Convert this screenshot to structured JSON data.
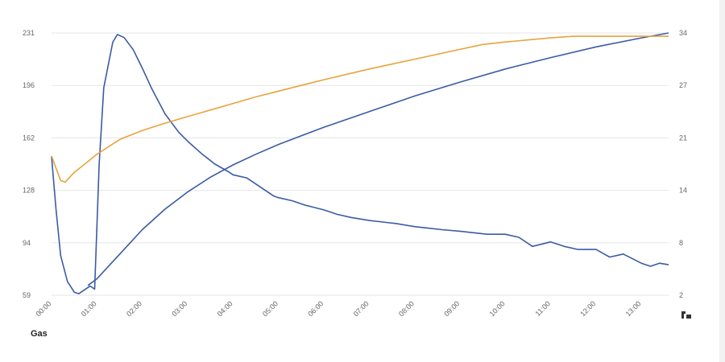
{
  "chart_data": {
    "type": "line",
    "title": "",
    "xlabel": "",
    "caption": "Gas",
    "x_ticks": [
      "00:00",
      "01:00",
      "02:00",
      "03:00",
      "04:00",
      "05:00",
      "06:00",
      "07:00",
      "08:00",
      "09:00",
      "10:00",
      "11:00",
      "12:00",
      "13:00"
    ],
    "xlim": [
      0,
      13.6
    ],
    "left_axis": {
      "ticks": [
        "59",
        "94",
        "128",
        "162",
        "196",
        "231"
      ],
      "ylim": [
        59,
        231
      ]
    },
    "right_axis": {
      "ticks": [
        "2",
        "8",
        "14",
        "21",
        "27",
        "34"
      ],
      "ylim": [
        2,
        34
      ]
    },
    "grid": "horizontal",
    "series": [
      {
        "axis": "left",
        "color": "#3a5ba5",
        "x": [
          0,
          0.1,
          0.2,
          0.35,
          0.5,
          0.6,
          0.7,
          0.85,
          0.95,
          1.05,
          1.15,
          1.35,
          1.45,
          1.6,
          1.8,
          2.0,
          2.2,
          2.5,
          2.8,
          3.0,
          3.3,
          3.6,
          3.9,
          4.0,
          4.3,
          4.6,
          4.9,
          5.0,
          5.3,
          5.6,
          6.0,
          6.3,
          6.6,
          7.0,
          7.3,
          7.6,
          8.0,
          8.3,
          8.6,
          9.0,
          9.3,
          9.6,
          10.0,
          10.3,
          10.6,
          11.0,
          11.3,
          11.6,
          12.0,
          12.3,
          12.6,
          13.0,
          13.2,
          13.4,
          13.6
        ],
        "values": [
          150,
          115,
          85,
          68,
          61,
          60,
          62,
          65,
          63,
          145,
          195,
          225,
          230,
          228,
          220,
          208,
          195,
          178,
          166,
          160,
          152,
          145,
          140,
          138,
          136,
          130,
          124,
          123,
          121,
          118,
          115,
          112,
          110,
          108,
          107,
          106,
          104,
          103,
          102,
          101,
          100,
          99,
          99,
          97,
          91,
          94,
          91,
          89,
          89,
          84,
          86,
          80,
          78,
          80,
          79
        ]
      },
      {
        "axis": "right",
        "color": "#3a5ba5",
        "x": [
          0.8,
          1.0,
          1.5,
          2.0,
          2.5,
          3.0,
          3.5,
          4.0,
          4.5,
          5.0,
          6.0,
          7.0,
          8.0,
          9.0,
          10.0,
          11.0,
          12.0,
          13.0,
          13.6
        ],
        "values": [
          3.2,
          4.0,
          7.0,
          10.0,
          12.5,
          14.6,
          16.4,
          17.9,
          19.2,
          20.4,
          22.5,
          24.4,
          26.3,
          28.0,
          29.6,
          31.0,
          32.3,
          33.4,
          34
        ]
      },
      {
        "axis": "right",
        "color": "#e8a33c",
        "x": [
          0,
          0.1,
          0.2,
          0.3,
          0.5,
          0.8,
          1.0,
          1.5,
          2.0,
          2.5,
          3.0,
          3.5,
          4.0,
          4.5,
          5.0,
          6.0,
          7.0,
          8.0,
          9.0,
          9.5,
          10.0,
          11.0,
          11.5,
          12.0,
          13.0,
          13.6
        ],
        "values": [
          19,
          17.5,
          16,
          15.8,
          17,
          18.3,
          19.2,
          21,
          22.1,
          23,
          23.8,
          24.6,
          25.4,
          26.2,
          26.9,
          28.3,
          29.6,
          30.8,
          32,
          32.6,
          32.9,
          33.4,
          33.6,
          33.6,
          33.6,
          33.6
        ]
      }
    ]
  },
  "ui": {
    "logo_name": "logo-mark-icon"
  }
}
